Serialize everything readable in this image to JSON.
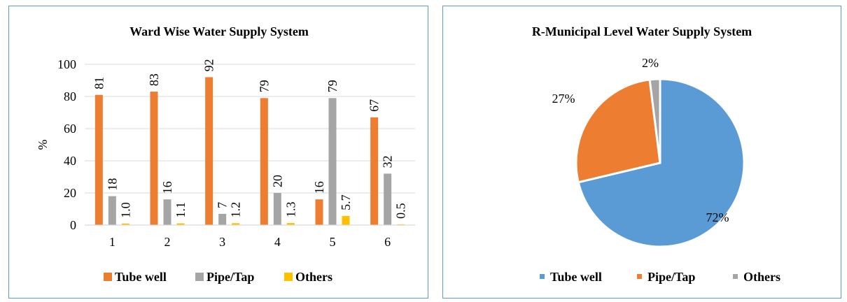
{
  "chart_data": [
    {
      "type": "bar",
      "title": "Ward Wise Water Supply System",
      "xlabel": "",
      "ylabel": "%",
      "ylim": [
        0,
        100
      ],
      "yticks": [
        0,
        20,
        40,
        60,
        80,
        100
      ],
      "categories": [
        "1",
        "2",
        "3",
        "4",
        "5",
        "6"
      ],
      "series": [
        {
          "name": "Tube well",
          "color": "#ed7d31",
          "values": [
            81,
            83,
            92,
            79,
            16,
            67
          ],
          "labels": [
            "81",
            "83",
            "92",
            "79",
            "16",
            "67"
          ]
        },
        {
          "name": "Pipe/Tap",
          "color": "#a5a5a5",
          "values": [
            18,
            16,
            7,
            20,
            79,
            32
          ],
          "labels": [
            "18",
            "16",
            "7",
            "20",
            "79",
            "32"
          ]
        },
        {
          "name": "Others",
          "color": "#ffc000",
          "values": [
            1.0,
            1.1,
            1.2,
            1.3,
            5.7,
            0.5
          ],
          "labels": [
            "1.0",
            "1.1",
            "1.2",
            "1.3",
            "5.7",
            "0.5"
          ]
        }
      ],
      "legend": "bottom"
    },
    {
      "type": "pie",
      "title": "R-Municipal Level Water Supply System",
      "slices": [
        {
          "name": "Tube well",
          "value": 72,
          "label": "72%",
          "color": "#5b9bd5"
        },
        {
          "name": "Pipe/Tap",
          "value": 27,
          "label": "27%",
          "color": "#ed7d31"
        },
        {
          "name": "Others",
          "value": 2,
          "label": "2%",
          "color": "#a5a5a5"
        }
      ],
      "legend": "bottom"
    }
  ]
}
